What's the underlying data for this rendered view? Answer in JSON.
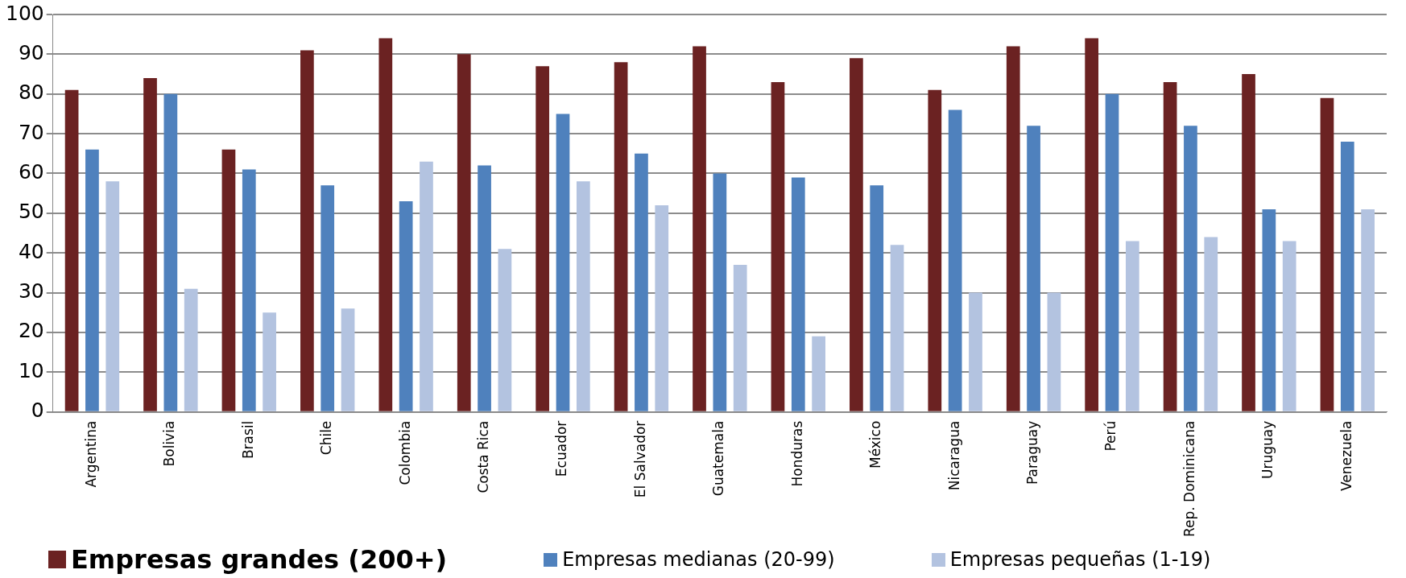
{
  "chart_data": {
    "type": "bar",
    "categories": [
      "Argentina",
      "Bolivia",
      "Brasil",
      "Chile",
      "Colombia",
      "Costa Rica",
      "Ecuador",
      "El Salvador",
      "Guatemala",
      "Honduras",
      "México",
      "Nicaragua",
      "Paraguay",
      "Perú",
      "Rep. Dominicana",
      "Uruguay",
      "Venezuela"
    ],
    "series": [
      {
        "name": "Empresas grandes (200+)",
        "color": "#6b2222",
        "values": [
          81,
          84,
          66,
          91,
          94,
          90,
          87,
          88,
          92,
          83,
          89,
          81,
          92,
          94,
          83,
          85,
          79
        ]
      },
      {
        "name": "Empresas medianas (20-99)",
        "color": "#4f81bd",
        "values": [
          66,
          80,
          61,
          57,
          53,
          62,
          75,
          65,
          60,
          59,
          57,
          76,
          72,
          80,
          72,
          51,
          68
        ]
      },
      {
        "name": "Empresas pequeñas (1-19)",
        "color": "#b3c3e0",
        "values": [
          58,
          31,
          25,
          26,
          63,
          41,
          58,
          52,
          37,
          19,
          42,
          30,
          30,
          43,
          44,
          43,
          51
        ]
      }
    ],
    "ylim": [
      0,
      100
    ],
    "yticks": [
      0,
      10,
      20,
      30,
      40,
      50,
      60,
      70,
      80,
      90,
      100
    ],
    "grid": "y",
    "legend": "bottom"
  }
}
